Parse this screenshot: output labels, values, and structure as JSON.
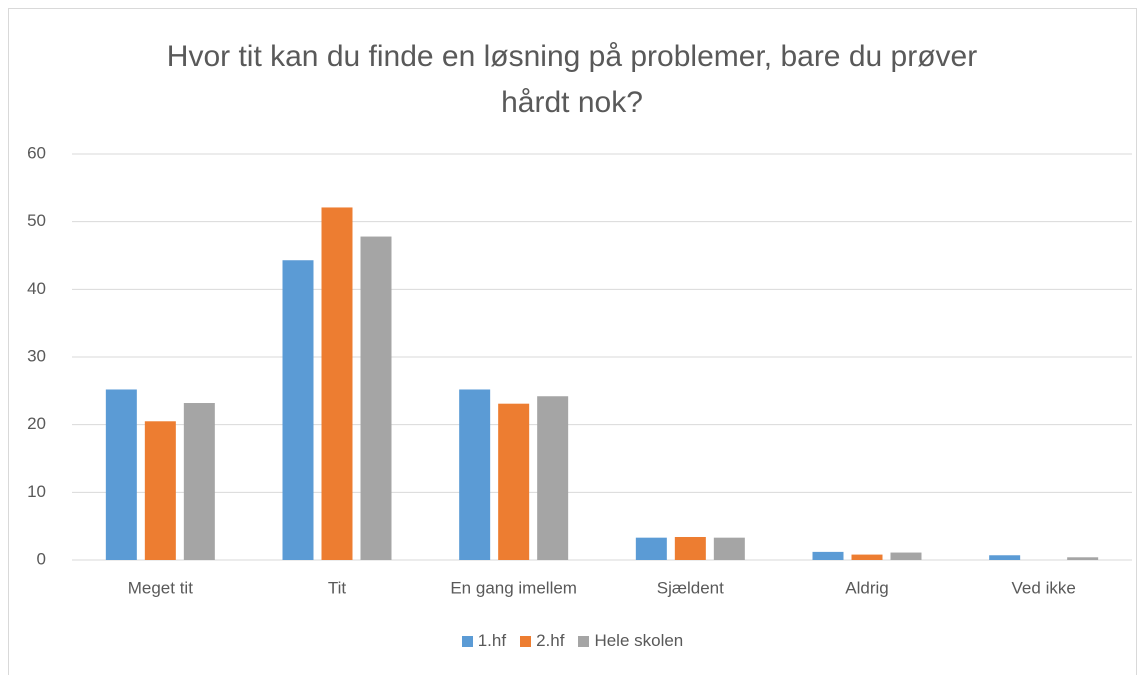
{
  "chart_data": {
    "type": "bar",
    "title": "Hvor tit kan du finde en løsning på problemer, bare du prøver hårdt nok?",
    "categories": [
      "Meget tit",
      "Tit",
      "En gang imellem",
      "Sjældent",
      "Aldrig",
      "Ved ikke"
    ],
    "series": [
      {
        "name": "1.hf",
        "color": "#5b9bd5",
        "values": [
          25.2,
          44.3,
          25.2,
          3.3,
          1.2,
          0.7
        ]
      },
      {
        "name": "2.hf",
        "color": "#ed7d31",
        "values": [
          20.5,
          52.1,
          23.1,
          3.4,
          0.8,
          0
        ]
      },
      {
        "name": "Hele skolen",
        "color": "#a5a5a5",
        "values": [
          23.2,
          47.8,
          24.2,
          3.3,
          1.1,
          0.4
        ]
      }
    ],
    "ylim": [
      0,
      60
    ],
    "yticks": [
      0,
      10,
      20,
      30,
      40,
      50,
      60
    ],
    "grid": true,
    "legend": "bottom"
  }
}
